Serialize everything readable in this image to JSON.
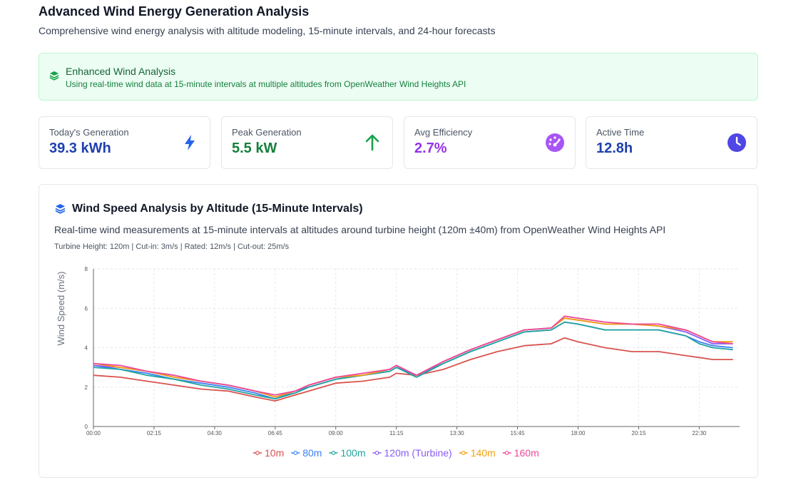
{
  "header": {
    "title": "Advanced Wind Energy Generation Analysis",
    "subtitle": "Comprehensive wind energy analysis with altitude modeling, 15-minute intervals, and 24-hour forecasts"
  },
  "banner": {
    "title": "Enhanced Wind Analysis",
    "text": "Using real-time wind data at 15-minute intervals at multiple altitudes from OpenWeather Wind Heights API",
    "icon": "layers-icon"
  },
  "stats": [
    {
      "label": "Today's Generation",
      "value": "39.3 kWh",
      "color": "#1e40af",
      "icon": "bolt-icon",
      "icon_color": "#2563eb"
    },
    {
      "label": "Peak Generation",
      "value": "5.5 kW",
      "color": "#15803d",
      "icon": "arrow-up-icon",
      "icon_color": "#16a34a"
    },
    {
      "label": "Avg Efficiency",
      "value": "2.7%",
      "color": "#9333ea",
      "icon": "gauge-icon",
      "icon_color": "#a855f7"
    },
    {
      "label": "Active Time",
      "value": "12.8h",
      "color": "#1e40af",
      "icon": "clock-icon",
      "icon_color": "#4f46e5"
    }
  ],
  "chart_card": {
    "title": "Wind Speed Analysis by Altitude (15-Minute Intervals)",
    "description": "Real-time wind measurements at 15-minute intervals at altitudes around turbine height (120m ±40m) from OpenWeather Wind Heights API",
    "meta": "Turbine Height: 120m | Cut-in: 3m/s | Rated: 12m/s | Cut-out: 25m/s"
  },
  "chart_data": {
    "type": "line",
    "title": "Wind Speed Analysis by Altitude (15-Minute Intervals)",
    "xlabel": "",
    "ylabel": "Wind Speed (m/s)",
    "ylim": [
      0,
      8
    ],
    "yticks": [
      0,
      2,
      4,
      6,
      8
    ],
    "grid": true,
    "legend_position": "bottom",
    "x_hours": [
      0,
      1,
      2,
      3,
      4,
      5,
      6,
      6.75,
      7.5,
      8,
      9,
      10,
      11,
      11.25,
      12,
      13,
      14,
      15,
      16,
      17,
      17.5,
      18,
      19,
      20,
      21,
      22,
      22.5,
      23,
      23.75
    ],
    "x_tick_hours": [
      0,
      2.25,
      4.5,
      6.75,
      9,
      11.25,
      13.5,
      15.75,
      18,
      20.25,
      22.5
    ],
    "x_tick_labels": [
      "00:00",
      "02:15",
      "04:30",
      "06:45",
      "09:00",
      "11:15",
      "13:30",
      "15:45",
      "18:00",
      "20:15",
      "22:30"
    ],
    "series": [
      {
        "name": "10m",
        "color": "#d9534f",
        "values": [
          2.6,
          2.5,
          2.3,
          2.1,
          1.9,
          1.8,
          1.5,
          1.3,
          1.6,
          1.8,
          2.2,
          2.3,
          2.5,
          2.7,
          2.6,
          2.9,
          3.4,
          3.8,
          4.1,
          4.2,
          4.5,
          4.3,
          4.0,
          3.8,
          3.8,
          3.6,
          3.5,
          3.4,
          3.4
        ]
      },
      {
        "name": "80m",
        "color": "#3b82f6",
        "values": [
          3.1,
          2.9,
          2.7,
          2.4,
          2.2,
          2.0,
          1.7,
          1.4,
          1.8,
          2.0,
          2.4,
          2.6,
          2.8,
          3.0,
          2.6,
          3.2,
          3.8,
          4.3,
          4.8,
          4.9,
          5.3,
          5.2,
          4.9,
          4.9,
          4.9,
          4.6,
          4.3,
          4.1,
          4.0
        ]
      },
      {
        "name": "100m",
        "color": "#22a39f",
        "values": [
          3.0,
          2.9,
          2.6,
          2.4,
          2.1,
          1.9,
          1.6,
          1.4,
          1.7,
          2.0,
          2.4,
          2.6,
          2.8,
          3.0,
          2.5,
          3.2,
          3.8,
          4.3,
          4.8,
          4.9,
          5.3,
          5.2,
          4.9,
          4.9,
          4.9,
          4.6,
          4.2,
          4.0,
          3.9
        ]
      },
      {
        "name": "120m (Turbine)",
        "color": "#8b5cf6",
        "values": [
          3.1,
          3.0,
          2.8,
          2.5,
          2.3,
          2.1,
          1.8,
          1.5,
          1.8,
          2.1,
          2.5,
          2.6,
          2.9,
          3.1,
          2.6,
          3.3,
          3.9,
          4.4,
          4.9,
          5.0,
          5.5,
          5.4,
          5.2,
          5.2,
          5.1,
          4.8,
          4.5,
          4.2,
          4.2
        ]
      },
      {
        "name": "140m",
        "color": "#f59e0b",
        "values": [
          3.2,
          3.0,
          2.8,
          2.5,
          2.3,
          2.1,
          1.8,
          1.5,
          1.8,
          2.1,
          2.5,
          2.6,
          2.9,
          3.1,
          2.6,
          3.3,
          3.9,
          4.4,
          4.9,
          5.0,
          5.5,
          5.4,
          5.2,
          5.2,
          5.1,
          4.9,
          4.6,
          4.3,
          4.3
        ]
      },
      {
        "name": "160m",
        "color": "#ec4899",
        "values": [
          3.2,
          3.1,
          2.8,
          2.6,
          2.3,
          2.1,
          1.8,
          1.6,
          1.8,
          2.1,
          2.5,
          2.7,
          2.9,
          3.1,
          2.6,
          3.3,
          3.9,
          4.4,
          4.9,
          5.0,
          5.6,
          5.5,
          5.3,
          5.2,
          5.2,
          4.9,
          4.6,
          4.3,
          4.2
        ]
      }
    ]
  }
}
